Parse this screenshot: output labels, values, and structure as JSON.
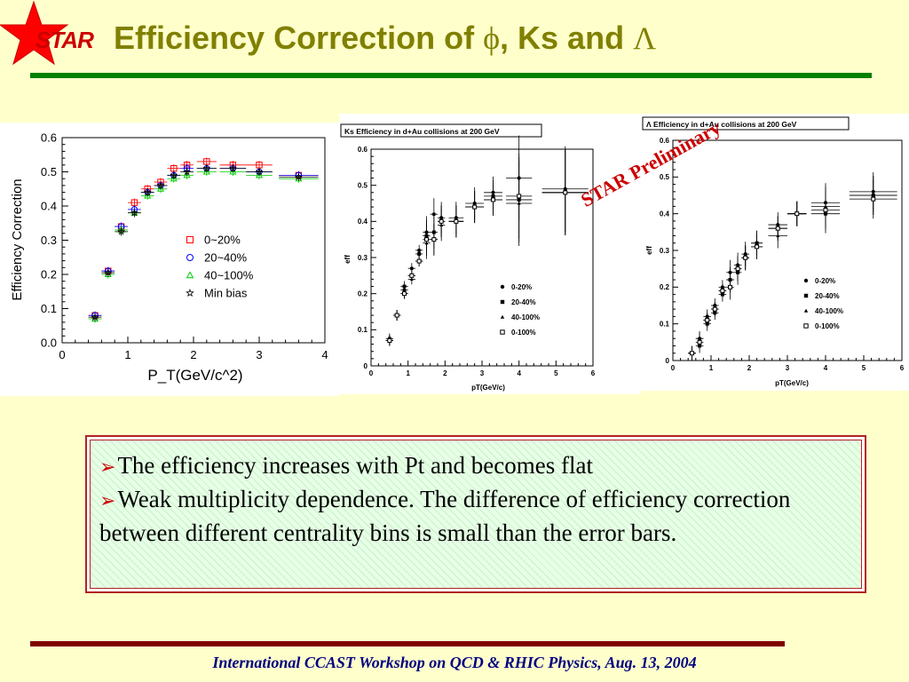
{
  "header": {
    "logo_text": "STAR",
    "title_prefix": "Efficiency Correction of ",
    "phi_symbol": "ϕ",
    "title_middle": ", Ks and ",
    "lambda_symbol": "Λ",
    "colors": {
      "title": "#808000",
      "logo_star": "#ff0000",
      "rule": "#008000"
    }
  },
  "chart_data": [
    {
      "type": "scatter",
      "title": "",
      "xlabel": "P_T(GeV/c^2)",
      "ylabel": "Efficiency Correction",
      "xlim": [
        0,
        4
      ],
      "ylim": [
        0,
        0.6
      ],
      "xticks": [
        "0",
        "1",
        "2",
        "3",
        "4"
      ],
      "yticks": [
        "0.0",
        "0.1",
        "0.2",
        "0.3",
        "0.4",
        "0.5",
        "0.6"
      ],
      "legend": "center-right",
      "series": [
        {
          "name": "0~20%",
          "marker": "square",
          "color": "#ff0000",
          "points": [
            [
              0.5,
              0.08
            ],
            [
              0.7,
              0.21
            ],
            [
              0.9,
              0.34
            ],
            [
              1.1,
              0.41
            ],
            [
              1.3,
              0.45
            ],
            [
              1.5,
              0.47
            ],
            [
              1.7,
              0.51
            ],
            [
              1.9,
              0.52
            ],
            [
              2.2,
              0.53
            ],
            [
              2.6,
              0.52
            ],
            [
              3.0,
              0.52
            ],
            [
              3.6,
              0.49
            ]
          ]
        },
        {
          "name": "20~40%",
          "marker": "circle",
          "color": "#0000ff",
          "points": [
            [
              0.5,
              0.08
            ],
            [
              0.7,
              0.21
            ],
            [
              0.9,
              0.34
            ],
            [
              1.1,
              0.39
            ],
            [
              1.3,
              0.44
            ],
            [
              1.5,
              0.46
            ],
            [
              1.7,
              0.49
            ],
            [
              1.9,
              0.51
            ],
            [
              2.2,
              0.51
            ],
            [
              2.6,
              0.51
            ],
            [
              3.0,
              0.5
            ],
            [
              3.6,
              0.49
            ]
          ]
        },
        {
          "name": "40~100%",
          "marker": "triangle",
          "color": "#00cc00",
          "points": [
            [
              0.5,
              0.07
            ],
            [
              0.7,
              0.2
            ],
            [
              0.9,
              0.33
            ],
            [
              1.1,
              0.38
            ],
            [
              1.3,
              0.43
            ],
            [
              1.5,
              0.45
            ],
            [
              1.7,
              0.48
            ],
            [
              1.9,
              0.49
            ],
            [
              2.2,
              0.5
            ],
            [
              2.6,
              0.5
            ],
            [
              3.0,
              0.49
            ],
            [
              3.6,
              0.48
            ]
          ]
        },
        {
          "name": "Min bias",
          "marker": "star",
          "color": "#000000",
          "points": [
            [
              0.5,
              0.075
            ],
            [
              0.7,
              0.205
            ],
            [
              0.9,
              0.325
            ],
            [
              1.1,
              0.38
            ],
            [
              1.3,
              0.44
            ],
            [
              1.5,
              0.46
            ],
            [
              1.7,
              0.49
            ],
            [
              1.9,
              0.5
            ],
            [
              2.2,
              0.51
            ],
            [
              2.6,
              0.51
            ],
            [
              3.0,
              0.5
            ],
            [
              3.6,
              0.485
            ]
          ]
        }
      ]
    },
    {
      "type": "scatter",
      "title": "Ks Efficiency in d+Au collisions at 200 GeV",
      "xlabel": "pT(GeV/c)",
      "ylabel": "eff",
      "xlim": [
        0,
        6
      ],
      "ylim": [
        0,
        0.6
      ],
      "xticks": [
        "0",
        "1",
        "2",
        "3",
        "4",
        "5",
        "6"
      ],
      "yticks": [
        "0",
        "0.1",
        "0.2",
        "0.3",
        "0.4",
        "0.5",
        "0.6"
      ],
      "legend": "lower-right",
      "series": [
        {
          "name": "0-20%",
          "marker": "circle-filled",
          "color": "#000000",
          "points": [
            [
              0.5,
              0.07
            ],
            [
              0.7,
              0.14
            ],
            [
              0.9,
              0.21
            ],
            [
              1.1,
              0.27
            ],
            [
              1.3,
              0.32
            ],
            [
              1.5,
              0.37
            ],
            [
              1.7,
              0.42
            ],
            [
              1.9,
              0.41
            ],
            [
              2.3,
              0.41
            ],
            [
              2.8,
              0.45
            ],
            [
              3.3,
              0.48
            ],
            [
              4.0,
              0.52
            ],
            [
              5.25,
              0.49
            ]
          ]
        },
        {
          "name": "20-40%",
          "marker": "square-filled",
          "color": "#000000",
          "points": [
            [
              0.5,
              0.075
            ],
            [
              0.7,
              0.14
            ],
            [
              0.9,
              0.22
            ],
            [
              1.1,
              0.25
            ],
            [
              1.3,
              0.31
            ],
            [
              1.5,
              0.36
            ],
            [
              1.7,
              0.37
            ],
            [
              1.9,
              0.4
            ],
            [
              2.3,
              0.4
            ],
            [
              2.8,
              0.44
            ],
            [
              3.3,
              0.47
            ],
            [
              4.0,
              0.46
            ],
            [
              5.25,
              0.48
            ]
          ]
        },
        {
          "name": "40-100%",
          "marker": "triangle-filled",
          "color": "#000000",
          "points": [
            [
              0.5,
              0.07
            ],
            [
              0.7,
              0.14
            ],
            [
              0.9,
              0.2
            ],
            [
              1.1,
              0.24
            ],
            [
              1.3,
              0.29
            ],
            [
              1.5,
              0.34
            ],
            [
              1.7,
              0.35
            ],
            [
              1.9,
              0.39
            ],
            [
              2.3,
              0.4
            ],
            [
              2.8,
              0.44
            ],
            [
              3.3,
              0.46
            ],
            [
              4.0,
              0.45
            ],
            [
              5.25,
              0.48
            ]
          ]
        },
        {
          "name": "0-100%",
          "marker": "square-open",
          "color": "#000000",
          "points": [
            [
              0.5,
              0.07
            ],
            [
              0.7,
              0.14
            ],
            [
              0.9,
              0.2
            ],
            [
              1.1,
              0.25
            ],
            [
              1.3,
              0.29
            ],
            [
              1.5,
              0.35
            ],
            [
              1.7,
              0.35
            ],
            [
              1.9,
              0.4
            ],
            [
              2.3,
              0.4
            ],
            [
              2.8,
              0.44
            ],
            [
              3.3,
              0.46
            ],
            [
              4.0,
              0.47
            ],
            [
              5.25,
              0.48
            ]
          ]
        }
      ]
    },
    {
      "type": "scatter",
      "title": "Λ Efficiency in d+Au collisions at 200 GeV",
      "xlabel": "pT(GeV/c)",
      "ylabel": "eff",
      "xlim": [
        0,
        6
      ],
      "ylim": [
        0,
        0.6
      ],
      "xticks": [
        "0",
        "1",
        "2",
        "3",
        "4",
        "5",
        "6"
      ],
      "yticks": [
        "0",
        "0.1",
        "0.2",
        "0.3",
        "0.4",
        "0.5",
        "0.6"
      ],
      "legend": "lower-right",
      "series": [
        {
          "name": "0-20%",
          "marker": "circle-filled",
          "color": "#000000",
          "points": [
            [
              0.5,
              0.02
            ],
            [
              0.7,
              0.06
            ],
            [
              0.9,
              0.12
            ],
            [
              1.1,
              0.15
            ],
            [
              1.3,
              0.2
            ],
            [
              1.5,
              0.24
            ],
            [
              1.7,
              0.26
            ],
            [
              1.9,
              0.29
            ],
            [
              2.2,
              0.32
            ],
            [
              2.75,
              0.37
            ],
            [
              3.25,
              0.4
            ],
            [
              4.0,
              0.43
            ],
            [
              5.25,
              0.46
            ]
          ]
        },
        {
          "name": "20-40%",
          "marker": "square-filled",
          "color": "#000000",
          "points": [
            [
              0.5,
              0.02
            ],
            [
              0.7,
              0.04
            ],
            [
              0.9,
              0.1
            ],
            [
              1.1,
              0.13
            ],
            [
              1.3,
              0.18
            ],
            [
              1.5,
              0.22
            ],
            [
              1.7,
              0.24
            ],
            [
              1.9,
              0.28
            ],
            [
              2.2,
              0.32
            ],
            [
              2.75,
              0.36
            ],
            [
              3.25,
              0.4
            ],
            [
              4.0,
              0.4
            ],
            [
              5.25,
              0.45
            ]
          ]
        },
        {
          "name": "40-100%",
          "marker": "triangle-filled",
          "color": "#000000",
          "points": [
            [
              0.5,
              0.02
            ],
            [
              0.7,
              0.06
            ],
            [
              0.9,
              0.11
            ],
            [
              1.1,
              0.14
            ],
            [
              1.3,
              0.19
            ],
            [
              1.5,
              0.22
            ],
            [
              1.7,
              0.25
            ],
            [
              1.9,
              0.28
            ],
            [
              2.2,
              0.31
            ],
            [
              2.75,
              0.34
            ],
            [
              3.25,
              0.4
            ],
            [
              4.0,
              0.42
            ],
            [
              5.25,
              0.45
            ]
          ]
        },
        {
          "name": "0-100%",
          "marker": "square-open",
          "color": "#000000",
          "points": [
            [
              0.5,
              0.02
            ],
            [
              0.7,
              0.05
            ],
            [
              0.9,
              0.11
            ],
            [
              1.1,
              0.14
            ],
            [
              1.3,
              0.19
            ],
            [
              1.5,
              0.2
            ],
            [
              1.7,
              0.25
            ],
            [
              1.9,
              0.28
            ],
            [
              2.2,
              0.31
            ],
            [
              2.75,
              0.36
            ],
            [
              3.25,
              0.4
            ],
            [
              4.0,
              0.41
            ],
            [
              5.25,
              0.44
            ]
          ]
        }
      ]
    }
  ],
  "annotation": {
    "preliminary": "STAR Preliminary",
    "color": "#cc0000"
  },
  "bullets": [
    "The efficiency increases with Pt and becomes flat",
    "Weak multiplicity dependence. The difference of efficiency correction between different centrality bins is small than the error bars."
  ],
  "bullet_marker": "➢",
  "footer": "International CCAST Workshop on QCD & RHIC Physics, Aug. 13, 2004"
}
